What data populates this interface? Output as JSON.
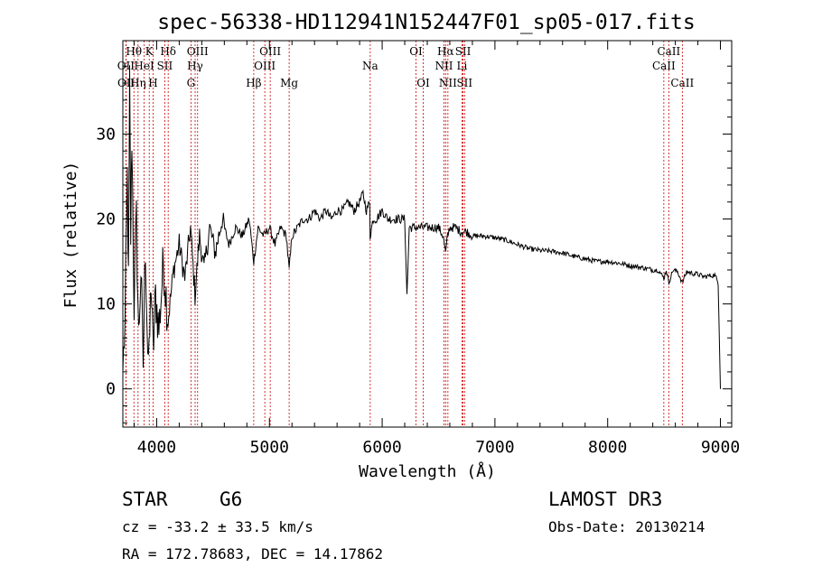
{
  "chart_data": {
    "type": "line",
    "title": "spec-56338-HD112941N152447F01_sp05-017.fits",
    "xlabel": "Wavelength (Å)",
    "ylabel": "Flux (relative)",
    "xlim": [
      3700,
      9100
    ],
    "ylim": [
      -4.5,
      41
    ],
    "xticks": [
      4000,
      5000,
      6000,
      7000,
      8000,
      9000
    ],
    "yticks": [
      0,
      10,
      20,
      30
    ],
    "series": [
      {
        "name": "spectrum",
        "x": [
          3700,
          3720,
          3740,
          3750,
          3760,
          3770,
          3780,
          3800,
          3820,
          3840,
          3860,
          3880,
          3900,
          3920,
          3933,
          3950,
          3968,
          3990,
          4020,
          4060,
          4101,
          4150,
          4200,
          4250,
          4300,
          4340,
          4380,
          4420,
          4470,
          4520,
          4580,
          4640,
          4700,
          4760,
          4820,
          4861,
          4900,
          4950,
          5000,
          5050,
          5100,
          5150,
          5175,
          5200,
          5250,
          5300,
          5350,
          5400,
          5450,
          5500,
          5550,
          5600,
          5650,
          5700,
          5750,
          5800,
          5830,
          5860,
          5890,
          5893,
          5920,
          5950,
          6000,
          6050,
          6100,
          6150,
          6200,
          6220,
          6240,
          6260,
          6300,
          6350,
          6400,
          6450,
          6500,
          6540,
          6563,
          6580,
          6600,
          6650,
          6700,
          6750,
          6800,
          6900,
          7000,
          7100,
          7200,
          7300,
          7400,
          7500,
          7600,
          7700,
          7800,
          7900,
          8000,
          8100,
          8200,
          8300,
          8400,
          8450,
          8498,
          8520,
          8542,
          8580,
          8620,
          8662,
          8700,
          8750,
          8800,
          8850,
          8900,
          8950,
          8980,
          9000
        ],
        "y": [
          2,
          8,
          25,
          12,
          36,
          18,
          30,
          10,
          20,
          6,
          14,
          3,
          17,
          5,
          3,
          13,
          4,
          11,
          7,
          15,
          8,
          14,
          17,
          13,
          19,
          11,
          18,
          14,
          19,
          16,
          20,
          17,
          19,
          18,
          20,
          15,
          19,
          18,
          19,
          17,
          19,
          18,
          14,
          18,
          19,
          20,
          20,
          21,
          20,
          21,
          20,
          21,
          21,
          22,
          21,
          22,
          23,
          21,
          22,
          18,
          20,
          20,
          21,
          20,
          20,
          20,
          20,
          11,
          19,
          19,
          19,
          19,
          19,
          19,
          19,
          18,
          16,
          18,
          19,
          19,
          18.5,
          18.5,
          18,
          18,
          17.8,
          17.5,
          17,
          16.5,
          16.3,
          16.2,
          16,
          15.6,
          15.3,
          15,
          15,
          14.8,
          14.5,
          14.3,
          14,
          14,
          13,
          14,
          12.5,
          14,
          13.8,
          12.5,
          13.8,
          13.6,
          13.5,
          13.2,
          13.3,
          13.4,
          12.5,
          0
        ]
      }
    ],
    "lines": [
      {
        "name": "OII",
        "w": 3727,
        "row": 2
      },
      {
        "name": "OII",
        "w": 3729,
        "row": 3
      },
      {
        "name": "Hθ",
        "w": 3798,
        "row": 1
      },
      {
        "name": "Hη",
        "w": 3835,
        "row": 3
      },
      {
        "name": "HeI",
        "w": 3889,
        "row": 2
      },
      {
        "name": "K",
        "w": 3934,
        "row": 1
      },
      {
        "name": "H",
        "w": 3968,
        "row": 3
      },
      {
        "name": "SII",
        "w": 4072,
        "row": 2
      },
      {
        "name": "Hδ",
        "w": 4102,
        "row": 1
      },
      {
        "name": "G",
        "w": 4304,
        "row": 3
      },
      {
        "name": "Hγ",
        "w": 4341,
        "row": 2
      },
      {
        "name": "OIII",
        "w": 4363,
        "row": 1
      },
      {
        "name": "Hβ",
        "w": 4861,
        "row": 3
      },
      {
        "name": "OIII",
        "w": 4959,
        "row": 2
      },
      {
        "name": "OIII",
        "w": 5007,
        "row": 1
      },
      {
        "name": "Mg",
        "w": 5175,
        "row": 3
      },
      {
        "name": "Na",
        "w": 5894,
        "row": 2
      },
      {
        "name": "OI",
        "w": 6300,
        "row": 1
      },
      {
        "name": "OI",
        "w": 6364,
        "row": 3
      },
      {
        "name": "NII",
        "w": 6548,
        "row": 2
      },
      {
        "name": "Hα",
        "w": 6563,
        "row": 1
      },
      {
        "name": "NII",
        "w": 6583,
        "row": 3
      },
      {
        "name": "Li",
        "w": 6708,
        "row": 2
      },
      {
        "name": "SII",
        "w": 6717,
        "row": 1
      },
      {
        "name": "SII",
        "w": 6731,
        "row": 3
      },
      {
        "name": "CaII",
        "w": 8498,
        "row": 2
      },
      {
        "name": "CaII",
        "w": 8542,
        "row": 1
      },
      {
        "name": "CaII",
        "w": 8662,
        "row": 3
      }
    ],
    "line_color": "#cc0000"
  },
  "info": {
    "class": "STAR",
    "subclass": "G6",
    "survey": "LAMOST DR3",
    "cz": "cz = -33.2 ± 33.5 km/s",
    "obsdate": "Obs-Date: 20130214",
    "coords": "RA = 172.78683, DEC =  14.17862"
  }
}
